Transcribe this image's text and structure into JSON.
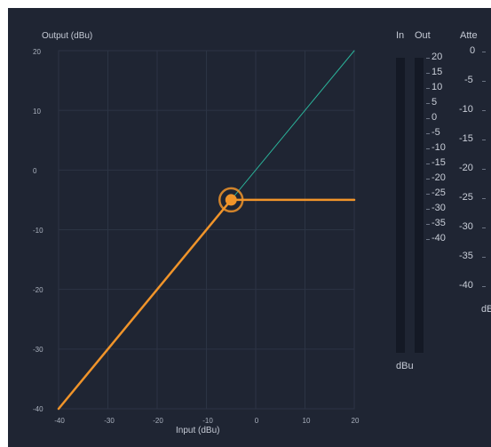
{
  "graph": {
    "title": "Output (dBu)",
    "xlabel": "Input (dBu)",
    "y_ticks": [
      "20",
      "10",
      "0",
      "-10",
      "-20",
      "-30",
      "-40"
    ],
    "x_ticks": [
      "-40",
      "-30",
      "-20",
      "-10",
      "0",
      "10",
      "20"
    ]
  },
  "chart_data": {
    "type": "line",
    "xlabel": "Input (dBu)",
    "ylabel": "Output (dBu)",
    "xlim": [
      -40,
      20
    ],
    "ylim": [
      -40,
      20
    ],
    "grid": true,
    "series": [
      {
        "values": [
          [
            -40,
            -40
          ],
          [
            20,
            20
          ]
        ],
        "color": "#2bb39a"
      },
      {
        "values": [
          [
            -40,
            -40
          ],
          [
            -5,
            -5
          ],
          [
            20,
            -5
          ]
        ],
        "color": "#f0942a"
      }
    ],
    "threshold": {
      "x": -5,
      "y": -5
    }
  },
  "meters": {
    "in_label": "In",
    "out_label": "Out",
    "scale": [
      "20",
      "15",
      "10",
      "5",
      "0",
      "-5",
      "-10",
      "-15",
      "-20",
      "-25",
      "-30",
      "-35",
      "-40"
    ],
    "unit": "dBu"
  },
  "attenuation": {
    "label": "Atte",
    "scale": [
      "0",
      "-5",
      "-10",
      "-15",
      "-20",
      "-25",
      "-30",
      "-35",
      "-40"
    ],
    "unit": "dB"
  },
  "colors": {
    "background": "#1f2533",
    "line": "#2bb39a",
    "curve": "#f0942a"
  }
}
